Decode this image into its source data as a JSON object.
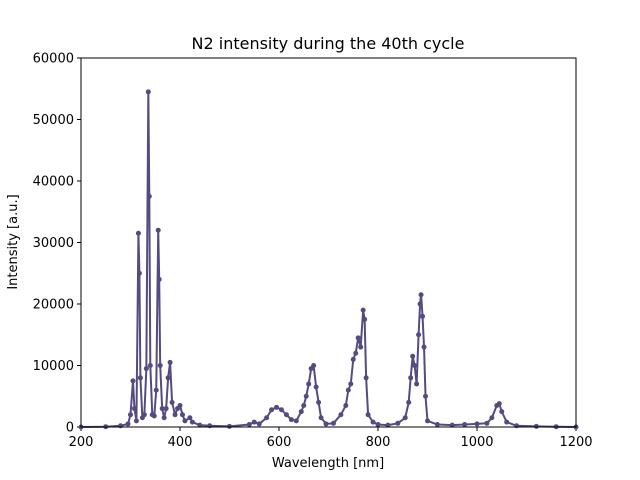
{
  "chart_data": {
    "type": "line",
    "title": "N2 intensity during the 40th cycle",
    "xlabel": "Wavelength [nm]",
    "ylabel": "Intensity [a.u.]",
    "xlim": [
      200,
      1200
    ],
    "xticks": [
      200,
      400,
      600,
      800,
      1000,
      1200
    ],
    "ylim": [
      0,
      60000
    ],
    "yticks": [
      0,
      10000,
      20000,
      30000,
      40000,
      50000,
      60000
    ],
    "grid": false,
    "markers": true,
    "series": [
      {
        "color": "#544b80",
        "x": [
          200,
          250,
          280,
          295,
          300,
          305,
          308,
          312,
          316,
          318,
          320,
          324,
          328,
          332,
          336,
          338,
          340,
          344,
          348,
          352,
          356,
          358,
          360,
          364,
          368,
          372,
          376,
          380,
          384,
          390,
          395,
          400,
          405,
          410,
          420,
          425,
          440,
          460,
          500,
          540,
          550,
          560,
          575,
          585,
          595,
          605,
          615,
          625,
          635,
          645,
          650,
          655,
          660,
          665,
          670,
          675,
          680,
          685,
          695,
          710,
          725,
          735,
          740,
          745,
          750,
          755,
          760,
          765,
          770,
          773,
          776,
          780,
          790,
          800,
          820,
          840,
          855,
          862,
          866,
          870,
          874,
          878,
          882,
          885,
          887,
          890,
          893,
          896,
          900,
          920,
          950,
          975,
          1000,
          1020,
          1030,
          1040,
          1045,
          1050,
          1060,
          1080,
          1120,
          1160,
          1200
        ],
        "values": [
          0,
          50,
          200,
          500,
          2000,
          7500,
          3000,
          1000,
          31500,
          25000,
          8000,
          1500,
          2000,
          9500,
          54500,
          37500,
          10000,
          2000,
          1800,
          6000,
          32000,
          24000,
          10000,
          3000,
          1500,
          3000,
          8000,
          10500,
          4000,
          2000,
          3000,
          3500,
          2000,
          1000,
          1500,
          800,
          300,
          200,
          100,
          400,
          800,
          500,
          1500,
          2800,
          3200,
          2800,
          2000,
          1200,
          1000,
          2500,
          3500,
          5000,
          7000,
          9500,
          10000,
          6500,
          4000,
          1500,
          500,
          600,
          2000,
          3500,
          6000,
          7000,
          11000,
          12000,
          14500,
          13000,
          19000,
          17500,
          8000,
          2000,
          800,
          400,
          300,
          600,
          1500,
          4000,
          8000,
          11500,
          10000,
          7000,
          15000,
          20000,
          21500,
          18000,
          13000,
          5000,
          1000,
          400,
          300,
          400,
          500,
          600,
          1500,
          3500,
          3800,
          2500,
          800,
          200,
          100,
          50,
          0
        ]
      }
    ]
  }
}
